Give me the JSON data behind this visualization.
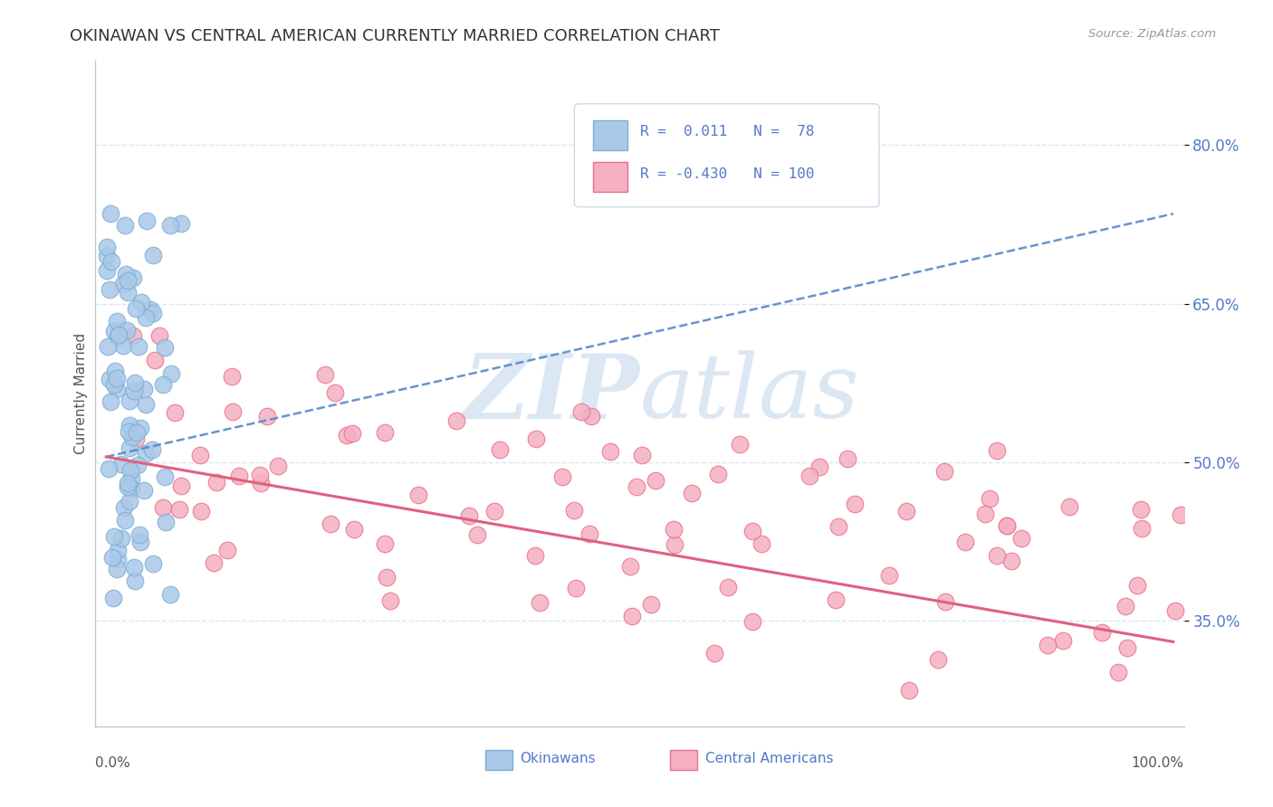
{
  "title": "OKINAWAN VS CENTRAL AMERICAN CURRENTLY MARRIED CORRELATION CHART",
  "source": "Source: ZipAtlas.com",
  "ylabel": "Currently Married",
  "y_ticks": [
    0.35,
    0.5,
    0.65,
    0.8
  ],
  "y_tick_labels": [
    "35.0%",
    "50.0%",
    "65.0%",
    "80.0%"
  ],
  "legend_labels": [
    "Okinawans",
    "Central Americans"
  ],
  "r_okinawan": 0.011,
  "n_okinawan": 78,
  "r_central": -0.43,
  "n_central": 100,
  "okinawan_fill": "#aac8e8",
  "okinawan_edge": "#7aaed4",
  "central_fill": "#f5afc0",
  "central_edge": "#e87090",
  "okinawan_line_color": "#5588cc",
  "central_line_color": "#e06080",
  "watermark_zip": "#c8ddf0",
  "watermark_atlas": "#c8ddf0",
  "bg_color": "#ffffff",
  "grid_color": "#d8e8f0",
  "spine_color": "#c0c8d0",
  "tick_label_color": "#5577cc",
  "title_color": "#333333",
  "source_color": "#999999",
  "legend_text_color": "#5577cc",
  "xlim": [
    0.0,
    1.0
  ],
  "ylim": [
    0.25,
    0.88
  ]
}
